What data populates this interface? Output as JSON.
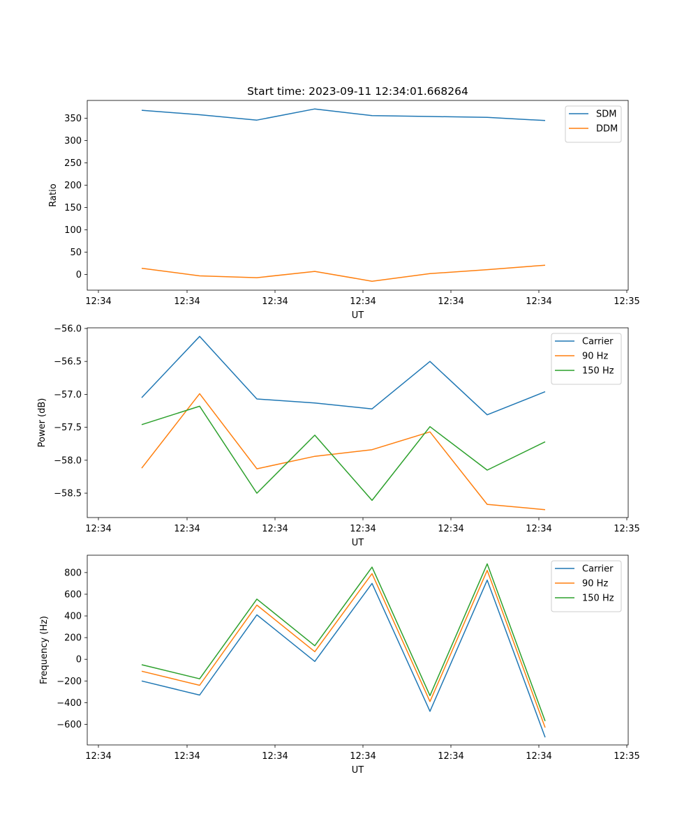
{
  "chart_data": [
    {
      "type": "line",
      "title": "Start time: 2023-09-11 12:34:01.668264",
      "xlabel": "UT",
      "ylabel": "Ratio",
      "x_tick_labels": [
        "12:34",
        "12:34",
        "12:34",
        "12:34",
        "12:34",
        "12:34",
        "12:34",
        "12:35"
      ],
      "ylim": [
        -35,
        390
      ],
      "y_ticks": [
        0,
        50,
        100,
        150,
        200,
        250,
        300,
        350
      ],
      "legend": "top-right",
      "grid": false,
      "series": [
        {
          "name": "SDM",
          "color": "#1f77b4",
          "values": [
            368,
            358,
            346,
            371,
            356,
            354,
            352,
            345
          ]
        },
        {
          "name": "DDM",
          "color": "#ff7f0e",
          "values": [
            14,
            -3,
            -7,
            7,
            -15,
            2,
            11,
            21
          ]
        }
      ]
    },
    {
      "type": "line",
      "title": "",
      "xlabel": "UT",
      "ylabel": "Power (dB)",
      "x_tick_labels": [
        "12:34",
        "12:34",
        "12:34",
        "12:34",
        "12:34",
        "12:34",
        "12:34",
        "12:35"
      ],
      "ylim": [
        -58.87,
        -55.99
      ],
      "y_ticks": [
        -58.5,
        -58.0,
        -57.5,
        -57.0,
        -56.5,
        -56.0
      ],
      "y_tick_labels": [
        "−58.5",
        "−58.0",
        "−57.5",
        "−57.0",
        "−56.5",
        "−56.0"
      ],
      "legend": "top-right",
      "grid": false,
      "series": [
        {
          "name": "Carrier",
          "color": "#1f77b4",
          "values": [
            -57.05,
            -56.12,
            -57.07,
            -57.13,
            -57.22,
            -56.5,
            -57.31,
            -56.96
          ]
        },
        {
          "name": "90 Hz",
          "color": "#ff7f0e",
          "values": [
            -58.12,
            -56.99,
            -58.13,
            -57.94,
            -57.84,
            -57.57,
            -58.67,
            -58.75
          ]
        },
        {
          "name": "150 Hz",
          "color": "#2ca02c",
          "values": [
            -57.46,
            -57.18,
            -58.5,
            -57.62,
            -58.61,
            -57.49,
            -58.15,
            -57.72
          ]
        }
      ]
    },
    {
      "type": "line",
      "title": "",
      "xlabel": "UT",
      "ylabel": "Frequency (Hz)",
      "x_tick_labels": [
        "12:34",
        "12:34",
        "12:34",
        "12:34",
        "12:34",
        "12:34",
        "12:34",
        "12:35"
      ],
      "ylim": [
        -790,
        960
      ],
      "y_ticks": [
        -600,
        -400,
        -200,
        0,
        200,
        400,
        600,
        800
      ],
      "y_tick_labels": [
        "−600",
        "−400",
        "−200",
        "0",
        "200",
        "400",
        "600",
        "800"
      ],
      "legend": "top-right",
      "grid": false,
      "series": [
        {
          "name": "Carrier",
          "color": "#1f77b4",
          "values": [
            -200,
            -330,
            410,
            -20,
            700,
            -480,
            730,
            -720
          ]
        },
        {
          "name": "90 Hz",
          "color": "#ff7f0e",
          "values": [
            -110,
            -240,
            500,
            70,
            790,
            -390,
            820,
            -630
          ]
        },
        {
          "name": "150 Hz",
          "color": "#2ca02c",
          "values": [
            -50,
            -180,
            555,
            125,
            850,
            -335,
            880,
            -570
          ]
        }
      ]
    }
  ]
}
